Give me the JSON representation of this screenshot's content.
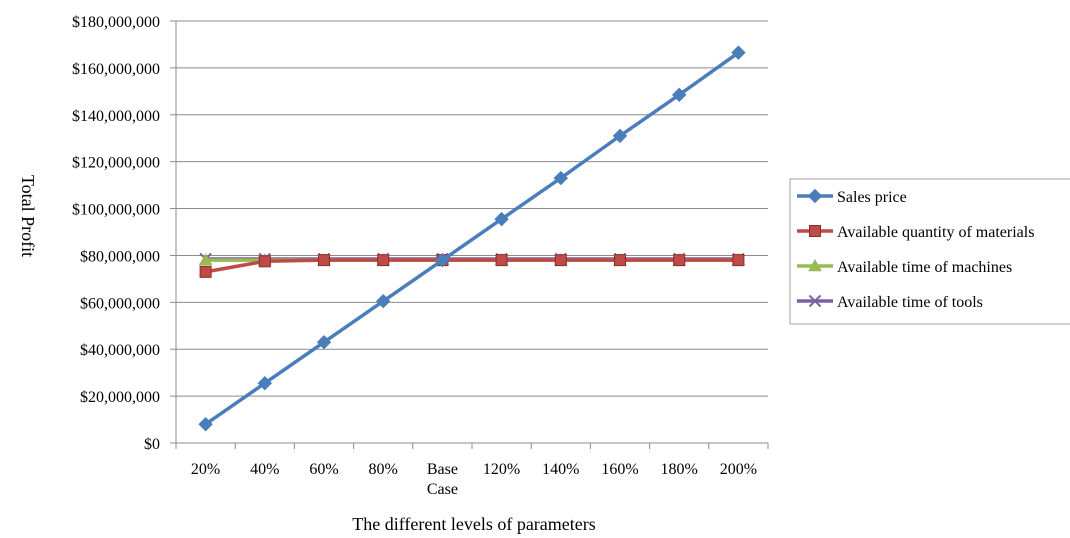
{
  "chart_data": {
    "type": "line",
    "xlabel": "The different levels of parameters",
    "ylabel": "Total Profit",
    "categories": [
      "20%",
      "40%",
      "60%",
      "80%",
      "Base Case",
      "120%",
      "140%",
      "160%",
      "180%",
      "200%"
    ],
    "category_lines": [
      [
        "20%"
      ],
      [
        "40%"
      ],
      [
        "60%"
      ],
      [
        "80%"
      ],
      [
        "Base",
        "Case"
      ],
      [
        "120%"
      ],
      [
        "140%"
      ],
      [
        "160%"
      ],
      [
        "180%"
      ],
      [
        "200%"
      ]
    ],
    "ylim": [
      0,
      180000000
    ],
    "yticks": [
      0,
      20000000,
      40000000,
      60000000,
      80000000,
      100000000,
      120000000,
      140000000,
      160000000,
      180000000
    ],
    "ytick_labels": [
      "$0",
      "$20,000,000",
      "$40,000,000",
      "$60,000,000",
      "$80,000,000",
      "$100,000,000",
      "$120,000,000",
      "$140,000,000",
      "$160,000,000",
      "$180,000,000"
    ],
    "grid": "horizontal",
    "legend_position": "right",
    "series": [
      {
        "name": "Sales price",
        "color": "#4a7ebb",
        "marker": "diamond",
        "values": [
          8000000,
          25500000,
          43000000,
          60500000,
          78000000,
          95500000,
          113000000,
          131000000,
          148500000,
          166500000
        ]
      },
      {
        "name": "Available quantity of materials",
        "color": "#be4b48",
        "marker": "square",
        "values": [
          73000000,
          77500000,
          78000000,
          78000000,
          78000000,
          78000000,
          78000000,
          78000000,
          78000000,
          78000000
        ]
      },
      {
        "name": "Available time of machines",
        "color": "#98b954",
        "marker": "triangle",
        "values": [
          78000000,
          78000000,
          78000000,
          78000000,
          78000000,
          78000000,
          78000000,
          78000000,
          78000000,
          78000000
        ]
      },
      {
        "name": "Available time of tools",
        "color": "#7d60a0",
        "marker": "x",
        "values": [
          78500000,
          78500000,
          78500000,
          78500000,
          78500000,
          78500000,
          78500000,
          78500000,
          78500000,
          78500000
        ]
      }
    ]
  }
}
